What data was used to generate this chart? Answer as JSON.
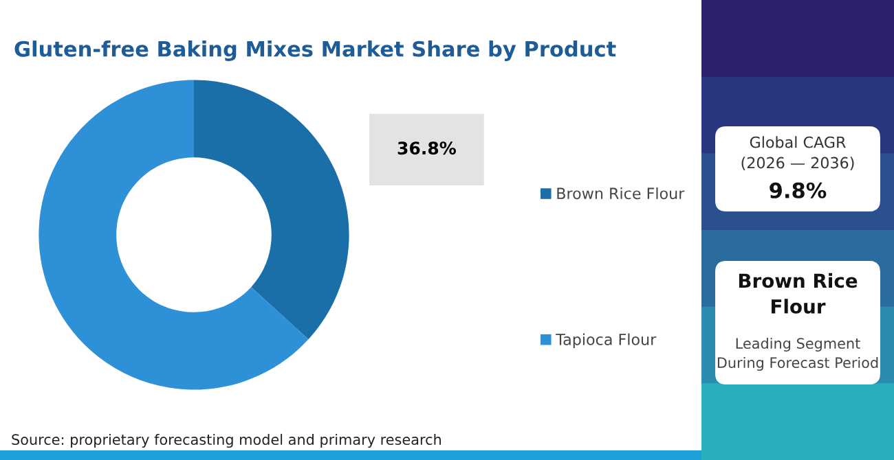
{
  "chart_data": {
    "type": "donut",
    "title": "Gluten-free Baking Mixes Market Share by Product",
    "categories": [
      "Brown Rice Flour",
      "Tapioca Flour"
    ],
    "values": [
      36.8,
      63.2
    ],
    "colors": [
      "#1b6fa8",
      "#2e90d6"
    ],
    "value_labels": [
      "36.8%",
      null
    ],
    "legend": "right",
    "annotations": [
      "Global CAGR\n(2026 — 2036)",
      "9.8%",
      "Brown Rice\nFlour",
      "Leading Segment\nDuring Forecast Period",
      "Source: proprietary forecasting model and primary research"
    ]
  }
}
